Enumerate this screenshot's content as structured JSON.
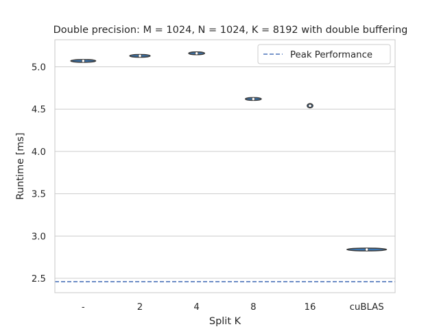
{
  "chart_data": {
    "type": "violin",
    "title": "Double precision: M = 1024, N = 1024, K = 8192 with double buffering",
    "xlabel": "Split K",
    "ylabel": "Runtime [ms]",
    "categories": [
      "-",
      "2",
      "4",
      "8",
      "16",
      "cuBLAS"
    ],
    "values": [
      5.07,
      5.13,
      5.16,
      4.62,
      4.54,
      2.84
    ],
    "violin_half_width_data_x": [
      0.22,
      0.18,
      0.14,
      0.14,
      0.05,
      0.35
    ],
    "violin_half_height": [
      0.006,
      0.007,
      0.012,
      0.01,
      0.025,
      0.004
    ],
    "ylim": [
      2.33,
      5.32
    ],
    "yticks": [
      2.5,
      3.0,
      3.5,
      4.0,
      4.5,
      5.0
    ],
    "ytick_labels": [
      "2.5",
      "3.0",
      "3.5",
      "4.0",
      "4.5",
      "5.0"
    ],
    "peak_performance": 2.46,
    "legend": {
      "label": "Peak Performance",
      "placement": "upper-right"
    },
    "grid": true,
    "colors": {
      "violin_fill": "#3a75b0",
      "violin_edge": "#3d3d3d",
      "peak_line": "#4a72b8",
      "grid": "#cccccc",
      "spine": "#cccccc"
    }
  }
}
